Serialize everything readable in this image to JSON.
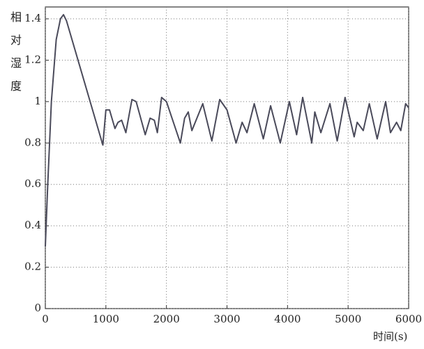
{
  "chart_data": {
    "type": "line",
    "ylabel": "相对湿度",
    "xlabel": "时间(s)",
    "x": [
      0,
      40,
      100,
      180,
      250,
      300,
      350,
      950,
      1000,
      1060,
      1150,
      1200,
      1260,
      1330,
      1430,
      1500,
      1650,
      1730,
      1800,
      1850,
      1920,
      2000,
      2230,
      2300,
      2360,
      2420,
      2600,
      2750,
      2880,
      3000,
      3150,
      3250,
      3330,
      3450,
      3600,
      3720,
      3880,
      4030,
      4150,
      4250,
      4400,
      4450,
      4550,
      4700,
      4820,
      4950,
      5100,
      5150,
      5250,
      5350,
      5480,
      5620,
      5700,
      5800,
      5870,
      5950,
      6000
    ],
    "series": [
      {
        "name": "相对湿度",
        "color": "#4a4a5a",
        "values": [
          0.3,
          0.6,
          1.0,
          1.3,
          1.4,
          1.42,
          1.39,
          0.79,
          0.96,
          0.96,
          0.87,
          0.9,
          0.91,
          0.85,
          1.01,
          1.0,
          0.84,
          0.92,
          0.91,
          0.85,
          1.02,
          1.0,
          0.8,
          0.92,
          0.95,
          0.86,
          0.99,
          0.81,
          1.01,
          0.96,
          0.8,
          0.9,
          0.85,
          0.99,
          0.82,
          0.98,
          0.8,
          1.0,
          0.84,
          1.02,
          0.8,
          0.95,
          0.85,
          0.99,
          0.81,
          1.02,
          0.83,
          0.9,
          0.86,
          0.99,
          0.82,
          1.0,
          0.85,
          0.9,
          0.86,
          0.99,
          0.97
        ]
      }
    ],
    "xlim": [
      0,
      6000
    ],
    "xticks": [
      0,
      1000,
      2000,
      3000,
      4000,
      5000,
      6000
    ],
    "ylim": [
      0,
      1.4
    ],
    "yticks": [
      0,
      0.2,
      0.4,
      0.6,
      0.8,
      1,
      1.2,
      1.4
    ],
    "grid": true
  }
}
